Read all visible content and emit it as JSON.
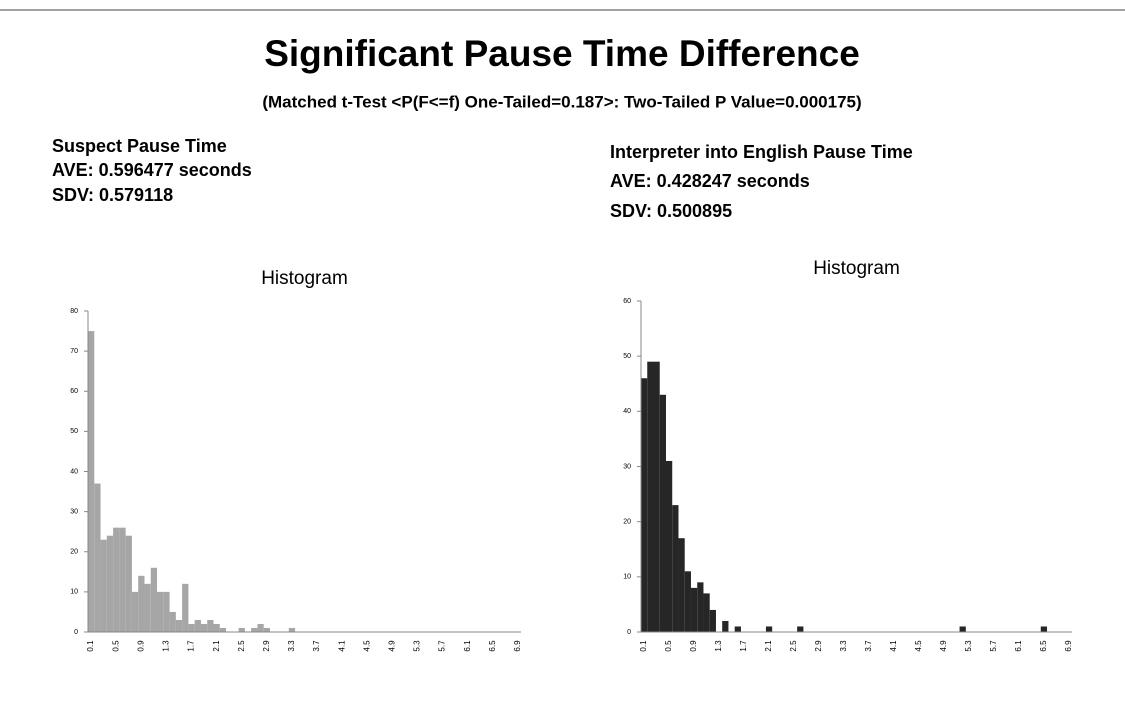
{
  "title": "Significant Pause Time Difference",
  "subtitle": "(Matched t-Test <P(F<=f) One-Tailed=0.187>: Two-Tailed P Value=0.000175)",
  "stats": [
    {
      "heading": "Suspect Pause Time",
      "ave": "AVE:  0.596477 seconds",
      "sdv": "SDV:  0.579118"
    },
    {
      "heading": "Interpreter into English Pause Time",
      "ave": "AVE:  0.428247  seconds",
      "sdv": "SDV:  0.500895"
    }
  ],
  "chart_data": [
    {
      "type": "bar",
      "title": "Histogram",
      "color": "#a6a6a6",
      "categories": [
        "0.1",
        null,
        null,
        null,
        "0.5",
        null,
        null,
        null,
        "0.9",
        null,
        null,
        null,
        "1.3",
        null,
        null,
        null,
        "1.7",
        null,
        null,
        null,
        "2.1",
        null,
        null,
        null,
        "2.5",
        null,
        null,
        null,
        "2.9",
        null,
        null,
        null,
        "3.3",
        null,
        null,
        null,
        "3.7",
        null,
        null,
        null,
        "4.1",
        null,
        null,
        null,
        "4.5",
        null,
        null,
        null,
        "4.9",
        null,
        null,
        null,
        "5.3",
        null,
        null,
        null,
        "5.7",
        null,
        null,
        null,
        "6.1",
        null,
        null,
        null,
        "6.5",
        null,
        null,
        null,
        "6.9"
      ],
      "values": [
        75,
        37,
        23,
        24,
        26,
        26,
        24,
        10,
        14,
        12,
        16,
        10,
        10,
        5,
        3,
        12,
        2,
        3,
        2,
        3,
        2,
        1,
        0,
        0,
        1,
        0,
        1,
        2,
        1,
        0,
        0,
        0,
        1,
        0,
        0,
        0,
        0,
        0,
        0,
        0,
        0,
        0,
        0,
        0,
        0,
        0,
        0,
        0,
        0,
        0,
        0,
        0,
        0,
        0,
        0,
        0,
        0,
        0,
        0,
        0,
        0,
        0,
        0,
        0,
        0,
        0,
        0,
        0,
        0
      ],
      "ylim": [
        0,
        80
      ],
      "yticks": [
        0,
        10,
        20,
        30,
        40,
        50,
        60,
        70,
        80
      ]
    },
    {
      "type": "bar",
      "title": "Histogram",
      "color": "#262626",
      "categories": [
        "0.1",
        null,
        null,
        null,
        "0.5",
        null,
        null,
        null,
        "0.9",
        null,
        null,
        null,
        "1.3",
        null,
        null,
        null,
        "1.7",
        null,
        null,
        null,
        "2.1",
        null,
        null,
        null,
        "2.5",
        null,
        null,
        null,
        "2.9",
        null,
        null,
        null,
        "3.3",
        null,
        null,
        null,
        "3.7",
        null,
        null,
        null,
        "4.1",
        null,
        null,
        null,
        "4.5",
        null,
        null,
        null,
        "4.9",
        null,
        null,
        null,
        "5.3",
        null,
        null,
        null,
        "5.7",
        null,
        null,
        null,
        "6.1",
        null,
        null,
        null,
        "6.5",
        null,
        null,
        null,
        "6.9"
      ],
      "values": [
        46,
        49,
        49,
        43,
        31,
        23,
        17,
        11,
        8,
        9,
        7,
        4,
        0,
        2,
        0,
        1,
        0,
        0,
        0,
        0,
        1,
        0,
        0,
        0,
        0,
        1,
        0,
        0,
        0,
        0,
        0,
        0,
        0,
        0,
        0,
        0,
        0,
        0,
        0,
        0,
        0,
        0,
        0,
        0,
        0,
        0,
        0,
        0,
        0,
        0,
        0,
        1,
        0,
        0,
        0,
        0,
        0,
        0,
        0,
        0,
        0,
        0,
        0,
        0,
        1,
        0,
        0,
        0,
        0
      ],
      "ylim": [
        0,
        60
      ],
      "yticks": [
        0,
        10,
        20,
        30,
        40,
        50,
        60
      ]
    }
  ]
}
